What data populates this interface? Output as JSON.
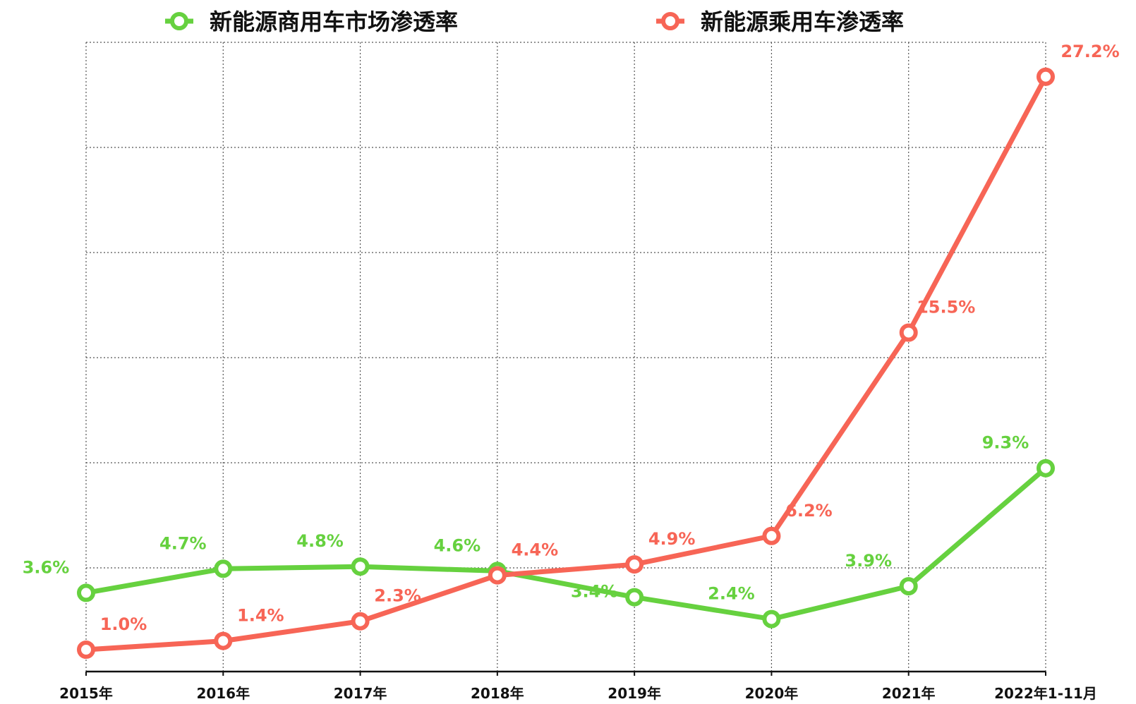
{
  "chart_data": {
    "type": "line",
    "title": "",
    "xlabel": "",
    "ylabel": "",
    "categories": [
      "2015年",
      "2016年",
      "2017年",
      "2018年",
      "2019年",
      "2020年",
      "2021年",
      "2022年1-11月"
    ],
    "ylim": [
      0,
      28.5
    ],
    "grid": true,
    "legend_position": "top",
    "series": [
      {
        "name": "新能源商用车市场渗透率",
        "color": "#66d13f",
        "values": [
          3.6,
          4.7,
          4.8,
          4.6,
          3.4,
          2.4,
          3.9,
          9.3
        ],
        "labels": [
          "3.6%",
          "4.7%",
          "4.8%",
          "4.6%",
          "3.4%",
          "2.4%",
          "3.9%",
          "9.3%"
        ]
      },
      {
        "name": "新能源乘用车渗透率",
        "color": "#f76556",
        "values": [
          1.0,
          1.4,
          2.3,
          4.4,
          4.9,
          6.2,
          15.5,
          27.2
        ],
        "labels": [
          "1.0%",
          "1.4%",
          "2.3%",
          "4.4%",
          "4.9%",
          "6.2%",
          "15.5%",
          "27.2%"
        ]
      }
    ]
  }
}
